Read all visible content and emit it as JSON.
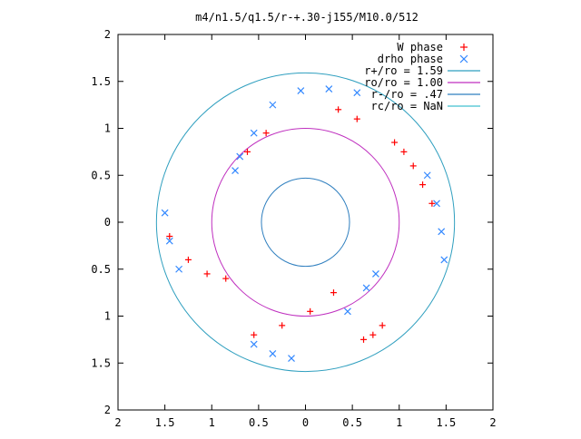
{
  "chart_data": {
    "type": "scatter",
    "title": "m4/n1.5/q1.5/r-+.30-j155/M10.0/512",
    "xlim": [
      -2,
      2
    ],
    "ylim": [
      -2,
      2
    ],
    "xticks": [
      -2,
      -1.5,
      -1,
      -0.5,
      0,
      0.5,
      1,
      1.5,
      2
    ],
    "yticks": [
      -2,
      -1.5,
      -1,
      -0.5,
      0,
      0.5,
      1,
      1.5,
      2
    ],
    "xtick_labels": [
      "2",
      "1.5",
      "1",
      "0.5",
      "0",
      "0.5",
      "1",
      "1.5",
      "2"
    ],
    "ytick_labels": [
      "2",
      "1.5",
      "1",
      "0.5",
      "0",
      "0.5",
      "1",
      "1.5",
      "2"
    ],
    "grid": false,
    "legend_position": "top-right",
    "series": [
      {
        "name": "W phase",
        "marker": "+",
        "color": "#ff0000",
        "description": "Red spiral arms, 4 arms, spanning r 0.47 to 1.59",
        "x": [
          0.95,
          1.05,
          1.15,
          1.25,
          1.35,
          -0.85,
          -1.05,
          -1.25,
          -1.45,
          0.3,
          0.05,
          -0.25,
          -0.55,
          0.62,
          0.72,
          0.82,
          -0.62,
          -0.42,
          0.35,
          0.55
        ],
        "y": [
          0.85,
          0.75,
          0.6,
          0.4,
          0.2,
          -0.6,
          -0.55,
          -0.4,
          -0.15,
          -0.75,
          -0.95,
          -1.1,
          -1.2,
          -1.25,
          -1.2,
          -1.1,
          0.75,
          0.95,
          1.2,
          1.1
        ]
      },
      {
        "name": "drho phase",
        "marker": "x",
        "color": "#3388ff",
        "description": "Blue spiral arms, 4 arms, spanning r 0.47 to 1.59",
        "x": [
          1.3,
          1.4,
          1.45,
          1.48,
          -1.35,
          -1.45,
          -1.5,
          -0.35,
          -0.05,
          0.25,
          0.55,
          -0.55,
          -0.35,
          -0.15,
          0.45,
          0.65,
          0.75,
          -0.75,
          -0.7,
          -0.55
        ],
        "y": [
          0.5,
          0.2,
          -0.1,
          -0.4,
          -0.5,
          -0.2,
          0.1,
          1.25,
          1.4,
          1.42,
          1.38,
          -1.3,
          -1.4,
          -1.45,
          -0.95,
          -0.7,
          -0.55,
          0.55,
          0.7,
          0.95
        ]
      }
    ],
    "reference_circles": [
      {
        "name": "r+/ro = 1.59",
        "radius": 1.59,
        "color": "#2f9fbf"
      },
      {
        "name": "ro/ro = 1.00",
        "radius": 1.0,
        "color": "#bf2fbf"
      },
      {
        "name": "r-/ro = .47",
        "radius": 0.47,
        "color": "#2f7fbf"
      },
      {
        "name": "rc/ro = NaN",
        "radius": null,
        "color": "#40c0d0"
      }
    ]
  }
}
